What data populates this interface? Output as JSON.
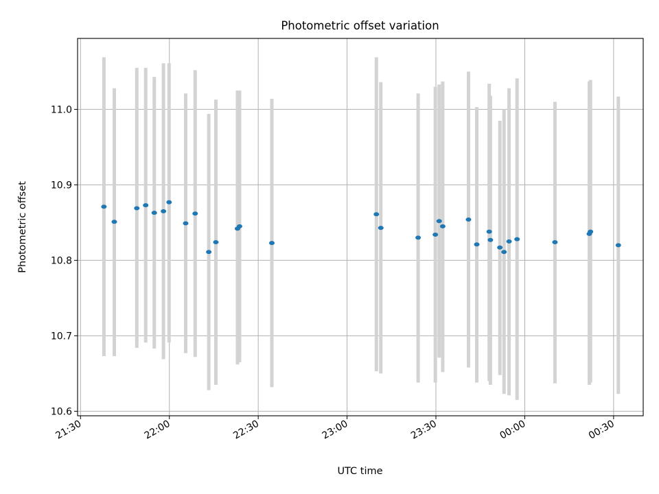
{
  "chart_data": {
    "type": "scatter",
    "title": "Photometric offset variation",
    "xlabel": "UTC time",
    "ylabel": "Photometric offset",
    "xlim": [
      "21:29",
      "23:59+00:40"
    ],
    "x_range_minutes": [
      -1,
      190
    ],
    "ylim": [
      10.594,
      11.094
    ],
    "x_ticks": [
      {
        "label": "21:30",
        "minute": 0
      },
      {
        "label": "22:00",
        "minute": 30
      },
      {
        "label": "22:30",
        "minute": 60
      },
      {
        "label": "23:00",
        "minute": 90
      },
      {
        "label": "23:30",
        "minute": 120
      },
      {
        "label": "00:00",
        "minute": 150
      },
      {
        "label": "00:30",
        "minute": 180
      }
    ],
    "y_ticks": [
      {
        "label": "10.6",
        "value": 10.6
      },
      {
        "label": "10.7",
        "value": 10.7
      },
      {
        "label": "10.8",
        "value": 10.8
      },
      {
        "label": "10.9",
        "value": 10.9
      },
      {
        "label": "11.0",
        "value": 11.0
      }
    ],
    "grid": true,
    "marker_color": "#1f77b4",
    "errorbar_color": "#d3d3d3",
    "points": [
      {
        "t": "21:37.9",
        "y": 10.871,
        "lo": 10.673,
        "hi": 11.069
      },
      {
        "t": "21:41.4",
        "y": 10.851,
        "lo": 10.673,
        "hi": 11.028
      },
      {
        "t": "21:49.0",
        "y": 10.869,
        "lo": 10.684,
        "hi": 11.055
      },
      {
        "t": "21:52.0",
        "y": 10.873,
        "lo": 10.691,
        "hi": 11.055
      },
      {
        "t": "21:54.9",
        "y": 10.863,
        "lo": 10.683,
        "hi": 11.043
      },
      {
        "t": "21:58.0",
        "y": 10.865,
        "lo": 10.669,
        "hi": 11.061
      },
      {
        "t": "21:59.9",
        "y": 10.877,
        "lo": 10.691,
        "hi": 11.061
      },
      {
        "t": "22:05.5",
        "y": 10.849,
        "lo": 10.677,
        "hi": 11.021
      },
      {
        "t": "22:08.7",
        "y": 10.862,
        "lo": 10.672,
        "hi": 11.052
      },
      {
        "t": "22:13.3",
        "y": 10.811,
        "lo": 10.628,
        "hi": 10.994
      },
      {
        "t": "22:15.7",
        "y": 10.824,
        "lo": 10.635,
        "hi": 11.013
      },
      {
        "t": "22:23.0",
        "y": 10.842,
        "lo": 10.662,
        "hi": 11.025
      },
      {
        "t": "22:23.7",
        "y": 10.845,
        "lo": 10.665,
        "hi": 11.025
      },
      {
        "t": "22:34.6",
        "y": 10.823,
        "lo": 10.632,
        "hi": 11.014
      },
      {
        "t": "23:09.9",
        "y": 10.861,
        "lo": 10.653,
        "hi": 11.069
      },
      {
        "t": "23:11.4",
        "y": 10.843,
        "lo": 10.65,
        "hi": 11.036
      },
      {
        "t": "23:24.0",
        "y": 10.83,
        "lo": 10.638,
        "hi": 11.021
      },
      {
        "t": "23:29.8",
        "y": 10.834,
        "lo": 10.638,
        "hi": 11.03
      },
      {
        "t": "23:31.1",
        "y": 10.852,
        "lo": 10.671,
        "hi": 11.033
      },
      {
        "t": "23:32.3",
        "y": 10.845,
        "lo": 10.652,
        "hi": 11.037
      },
      {
        "t": "23:41.0",
        "y": 10.854,
        "lo": 10.658,
        "hi": 11.05
      },
      {
        "t": "23:43.8",
        "y": 10.821,
        "lo": 10.638,
        "hi": 11.003
      },
      {
        "t": "23:48.0",
        "y": 10.838,
        "lo": 10.64,
        "hi": 11.034
      },
      {
        "t": "23:48.4",
        "y": 10.827,
        "lo": 10.635,
        "hi": 11.018
      },
      {
        "t": "23:51.6",
        "y": 10.817,
        "lo": 10.648,
        "hi": 10.985
      },
      {
        "t": "23:53.0",
        "y": 10.811,
        "lo": 10.623,
        "hi": 11.0
      },
      {
        "t": "23:54.7",
        "y": 10.825,
        "lo": 10.621,
        "hi": 11.028
      },
      {
        "t": "23:57.4",
        "y": 10.828,
        "lo": 10.615,
        "hi": 11.041
      },
      {
        "t": "00:10.2",
        "y": 10.824,
        "lo": 10.637,
        "hi": 11.01
      },
      {
        "t": "00:21.8",
        "y": 10.835,
        "lo": 10.635,
        "hi": 11.037
      },
      {
        "t": "00:22.2",
        "y": 10.838,
        "lo": 10.638,
        "hi": 11.039
      },
      {
        "t": "00:31.6",
        "y": 10.82,
        "lo": 10.623,
        "hi": 11.017
      }
    ]
  }
}
